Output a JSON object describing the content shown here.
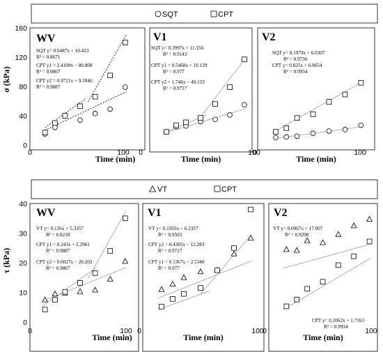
{
  "top_legend": {
    "series": [
      "SQT",
      "CPT"
    ]
  },
  "bottom_legend": {
    "series": [
      "VT",
      "CPT"
    ]
  },
  "top_ylabel": "σ (kPa)",
  "bottom_ylabel": "τ (kPa)",
  "xlabel": "Time (min)",
  "chart_data": [
    {
      "type": "scatter",
      "title": "WV",
      "xlabel": "Time (min)",
      "ylabel": "σ (kPa)",
      "xlim": [
        0,
        100
      ],
      "ylim": [
        0,
        160
      ],
      "xticks": [
        "0",
        "100"
      ],
      "yticks": [
        "0",
        "40",
        "80",
        "120",
        "160"
      ],
      "series": [
        {
          "name": "SQT",
          "marker": "circle",
          "x": [
            15,
            25,
            35,
            50,
            65,
            80,
            95
          ],
          "y": [
            15,
            24,
            40,
            34,
            43,
            49,
            79
          ]
        },
        {
          "name": "CPT",
          "marker": "square",
          "x": [
            15,
            25,
            35,
            50,
            65,
            80,
            95
          ],
          "y": [
            17,
            30,
            40,
            53,
            66,
            95,
            140
          ]
        }
      ],
      "annotations": [
        "SQT y= 0.6487x + 10.433",
        "R² = 0.8671",
        "CPT y1 = 2.4109x − 80.808",
        "R² = 0.9867",
        "CPT y2 = 0.9721x + 9.1846",
        "R² = 0.9887"
      ]
    },
    {
      "type": "scatter",
      "title": "V1",
      "xlabel": "Time (min)",
      "xlim": [
        0,
        100
      ],
      "ylim": [
        0,
        160
      ],
      "xticks": [
        "0",
        "100"
      ],
      "series": [
        {
          "name": "SQT",
          "marker": "circle",
          "x": [
            15,
            25,
            35,
            50,
            65,
            80,
            95
          ],
          "y": [
            18,
            25,
            26,
            32,
            35,
            41,
            55
          ]
        },
        {
          "name": "CPT",
          "marker": "square",
          "x": [
            15,
            25,
            35,
            50,
            65,
            80,
            95
          ],
          "y": [
            18,
            27,
            31,
            37,
            56,
            79,
            117
          ]
        }
      ],
      "annotations": [
        "SQT y= 0.3997x + 11.156",
        "R² = 0.9143",
        "CPT y1 = 0.5468x + 10.139",
        "R² = 0.977",
        "CPT y2 = 1.746x − 49.133",
        "R² = 0.9717"
      ]
    },
    {
      "type": "scatter",
      "title": "V2",
      "xlabel": "Time (min)",
      "xlim": [
        0,
        100
      ],
      "ylim": [
        0,
        160
      ],
      "xticks": [
        "0",
        "100"
      ],
      "series": [
        {
          "name": "SQT",
          "marker": "circle",
          "x": [
            15,
            25,
            35,
            50,
            65,
            80,
            95
          ],
          "y": [
            10,
            11,
            12,
            16,
            19,
            21,
            27
          ]
        },
        {
          "name": "CPT",
          "marker": "square",
          "x": [
            15,
            25,
            35,
            50,
            65,
            80,
            95
          ],
          "y": [
            18,
            23,
            37,
            42,
            59,
            69,
            85
          ]
        }
      ],
      "annotations": [
        "SQT y= 0.1979x + 6.0307",
        "R² = 0.9736",
        "CPT y= 0.825x + 6.8654",
        "R² = 0.9934"
      ]
    },
    {
      "type": "scatter",
      "title": "WV",
      "xlabel": "Time (min)",
      "ylabel": "τ (kPa)",
      "xlim": [
        0,
        100
      ],
      "ylim": [
        0,
        40
      ],
      "xticks": [
        "0",
        "100"
      ],
      "yticks": [
        "0",
        "10",
        "20",
        "30",
        "40"
      ],
      "series": [
        {
          "name": "VT",
          "marker": "triangle",
          "x": [
            15,
            25,
            35,
            50,
            65,
            80,
            95
          ],
          "y": [
            7.5,
            9.5,
            9.8,
            10.3,
            10.8,
            14.5,
            20.5
          ]
        },
        {
          "name": "CPT",
          "marker": "square",
          "x": [
            15,
            25,
            35,
            50,
            65,
            80,
            95
          ],
          "y": [
            4.2,
            7.5,
            10.2,
            13.2,
            16.5,
            24,
            35
          ]
        }
      ],
      "annotations": [
        "VT y= 0.136x + 5.3357",
        "R² = 0.8218",
        "CPT y1 = 0.243x + 2.2961",
        "R² = 0.9887",
        "CPT y2 = 0.6027x − 20.202",
        "R² = 0.9867"
      ]
    },
    {
      "type": "scatter",
      "title": "V1",
      "xlabel": "Time (min)",
      "xlim": [
        0,
        100
      ],
      "ylim": [
        0,
        40
      ],
      "xticks": [
        "0",
        "100"
      ],
      "series": [
        {
          "name": "VT",
          "marker": "triangle",
          "x": [
            15,
            25,
            35,
            50,
            65,
            80,
            95
          ],
          "y": [
            11,
            12.8,
            15,
            17,
            17.5,
            23,
            28.3
          ]
        },
        {
          "name": "CPT",
          "marker": "square",
          "x": [
            15,
            25,
            35,
            50,
            65,
            80,
            95
          ],
          "y": [
            5.2,
            7.8,
            9.5,
            11.5,
            17.5,
            25,
            38
          ]
        }
      ],
      "annotations": [
        "VT y= 0.1503x + 6.2357",
        "R² = 0.9503",
        "CPT y2 = 0.4365x − 12.283",
        "R² = 0.9717",
        "CPT y1 = 0.1367x + 2.5348",
        "R² = 0.977"
      ]
    },
    {
      "type": "scatter",
      "title": "V2",
      "xlabel": "Time (min)",
      "xlim": [
        0,
        100
      ],
      "ylim": [
        0,
        40
      ],
      "xticks": [
        "0",
        "100"
      ],
      "series": [
        {
          "name": "VT",
          "marker": "triangle",
          "x": [
            15,
            25,
            35,
            50,
            65,
            80,
            95
          ],
          "y": [
            24.5,
            24.2,
            27.5,
            26.8,
            29.6,
            32.5,
            34.7
          ]
        },
        {
          "name": "CPT",
          "marker": "square",
          "x": [
            15,
            25,
            35,
            50,
            65,
            80,
            95
          ],
          "y": [
            5.3,
            7.6,
            11.2,
            13.6,
            19.2,
            22.2,
            27.2
          ]
        }
      ],
      "annotations": [
        "VT y= 0.0967x + 17.007",
        "R² = 0.9298",
        "CPT y= 0.2062x + 1.7163",
        "R² = 0.9934"
      ]
    }
  ]
}
